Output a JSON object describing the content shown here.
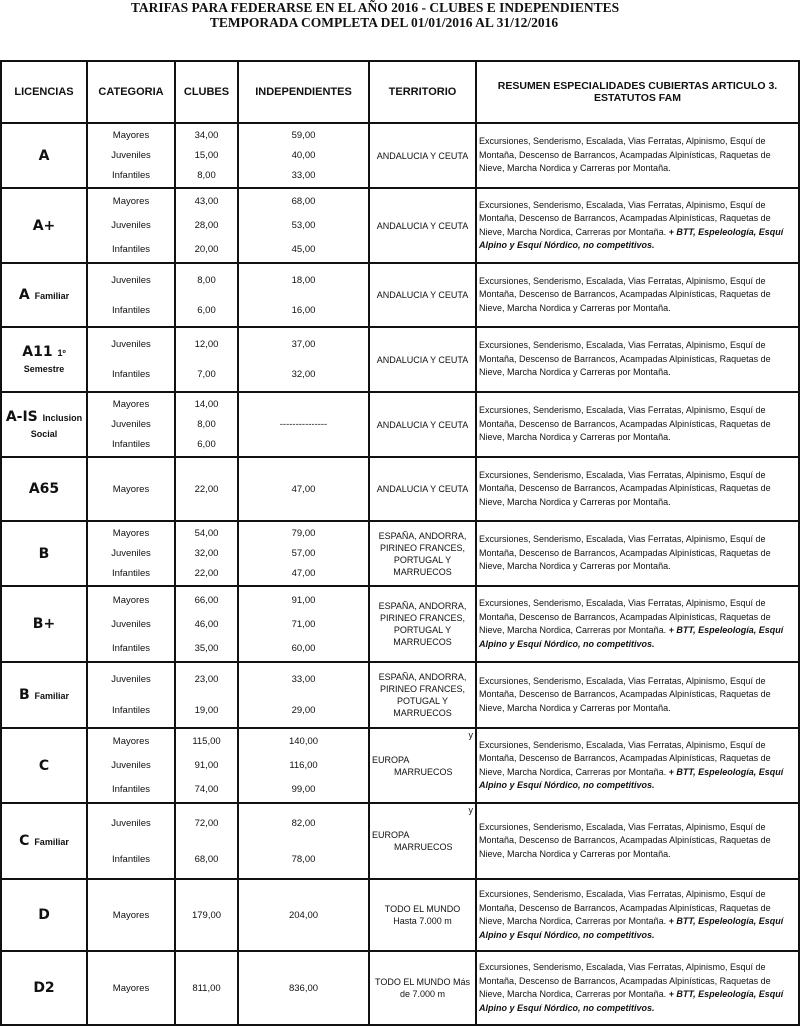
{
  "title_line1": "TARIFAS PARA FEDERARSE EN EL AÑO 2016 - CLUBES E INDEPENDIENTES",
  "title_line2": "TEMPORADA COMPLETA DEL 01/01/2016 AL 31/12/2016",
  "headers": [
    "LICENCIAS",
    "CATEGORIA",
    "CLUBES",
    "INDEPENDIENTES",
    "TERRITORIO",
    "RESUMEN ESPECIALIDADES CUBIERTAS ARTICULO 3. ESTATUTOS FAM"
  ],
  "rows": [
    {
      "lic": "A",
      "sub": "",
      "cats": [
        "Mayores",
        "Juveniles",
        "Infantiles"
      ],
      "clubes": [
        "34,00",
        "15,00",
        "8,00"
      ],
      "indep": [
        "59,00",
        "40,00",
        "33,00"
      ],
      "territorio": "ANDALUCIA Y CEUTA",
      "desc": "Excursiones, Senderismo, Escalada, Vias Ferratas, Alpinismo, Esquí de Montaña, Descenso de Barrancos, Acampadas Alpinísticas, Raquetas de Nieve, Marcha Nordica y Carreras por Montaña.",
      "desc_extra": ""
    },
    {
      "lic": "A+",
      "sub": "",
      "cats": [
        "Mayores",
        "Juveniles",
        "Infantiles"
      ],
      "clubes": [
        "43,00",
        "28,00",
        "20,00"
      ],
      "indep": [
        "68,00",
        "53,00",
        "45,00"
      ],
      "territorio": "ANDALUCIA Y CEUTA",
      "desc": "Excursiones, Senderismo, Escalada, Vias Ferratas, Alpinismo, Esquí de Montaña, Descenso de Barrancos, Acampadas Alpinísticas, Raquetas de Nieve, Marcha Nordica, Carreras por Montaña.",
      "desc_extra": "+ BTT, Espeleología, Esquí Alpino  y Esquí Nórdico, no competitivos."
    },
    {
      "lic": "A",
      "sub": "Familiar",
      "cats": [
        "Juveniles",
        "Infantiles"
      ],
      "clubes": [
        "8,00",
        "6,00"
      ],
      "indep": [
        "18,00",
        "16,00"
      ],
      "territorio": "ANDALUCIA Y CEUTA",
      "desc": "Excursiones, Senderismo, Escalada, Vias Ferratas, Alpinismo, Esquí de Montaña, Descenso de Barrancos, Acampadas Alpinísticas, Raquetas de Nieve, Marcha Nordica y Carreras por Montaña.",
      "desc_extra": ""
    },
    {
      "lic": "A11",
      "sub": "1º Semestre",
      "cats": [
        "Juveniles",
        "Infantiles"
      ],
      "clubes": [
        "12,00",
        "7,00"
      ],
      "indep": [
        "37,00",
        "32,00"
      ],
      "territorio": "ANDALUCIA Y CEUTA",
      "desc": "Excursiones, Senderismo, Escalada, Vias Ferratas, Alpinismo, Esquí de Montaña, Descenso de Barrancos, Acampadas Alpinísticas, Raquetas de Nieve, Marcha Nordica y Carreras por Montaña.",
      "desc_extra": ""
    },
    {
      "lic": "A-IS",
      "sub": "Inclusion Social",
      "cats": [
        "Mayores",
        "Juveniles",
        "Infantiles"
      ],
      "clubes": [
        "14,00",
        "8,00",
        "6,00"
      ],
      "indep": [
        "---------------"
      ],
      "territorio": "ANDALUCIA Y CEUTA",
      "desc": "Excursiones, Senderismo, Escalada, Vias Ferratas, Alpinismo, Esquí de Montaña, Descenso de Barrancos, Acampadas Alpinísticas, Raquetas de Nieve, Marcha Nordica y Carreras por Montaña.",
      "desc_extra": ""
    },
    {
      "lic": "A65",
      "sub": "",
      "cats": [
        "Mayores"
      ],
      "clubes": [
        "22,00"
      ],
      "indep": [
        "47,00"
      ],
      "territorio": "ANDALUCIA Y CEUTA",
      "desc": "Excursiones, Senderismo, Escalada, Vias Ferratas, Alpinismo, Esquí de Montaña, Descenso de Barrancos, Acampadas Alpinísticas, Raquetas de Nieve, Marcha Nordica y Carreras por Montaña.",
      "desc_extra": ""
    },
    {
      "lic": "B",
      "sub": "",
      "cats": [
        "Mayores",
        "Juveniles",
        "Infantiles"
      ],
      "clubes": [
        "54,00",
        "32,00",
        "22,00"
      ],
      "indep": [
        "79,00",
        "57,00",
        "47,00"
      ],
      "territorio": "ESPAÑA, ANDORRA, PIRINEO FRANCES, PORTUGAL Y MARRUECOS",
      "desc": "Excursiones, Senderismo, Escalada, Vias Ferratas, Alpinismo, Esquí de Montaña, Descenso de Barrancos, Acampadas Alpinísticas, Raquetas de Nieve, Marcha Nordica y Carreras por Montaña.",
      "desc_extra": ""
    },
    {
      "lic": "B+",
      "sub": "",
      "cats": [
        "Mayores",
        "Juveniles",
        "Infantiles"
      ],
      "clubes": [
        "66,00",
        "46,00",
        "35,00"
      ],
      "indep": [
        "91,00",
        "71,00",
        "60,00"
      ],
      "territorio": "ESPAÑA, ANDORRA, PIRINEO FRANCES, PORTUGAL Y MARRUECOS",
      "desc": "Excursiones, Senderismo, Escalada, Vias Ferratas, Alpinismo, Esquí de Montaña, Descenso de Barrancos, Acampadas Alpinísticas, Raquetas de Nieve, Marcha Nordica, Carreras por Montaña.",
      "desc_extra": "+ BTT, Espeleología, Esquí Alpino  y Esquí Nórdico, no competitivos."
    },
    {
      "lic": "B",
      "sub": "Familiar",
      "cats": [
        "Juveniles",
        "Infantiles"
      ],
      "clubes": [
        "23,00",
        "19,00"
      ],
      "indep": [
        "33,00",
        "29,00"
      ],
      "territorio": "ESPAÑA, ANDORRA, PIRINEO FRANCES, POTUGAL Y MARRUECOS",
      "desc": "Excursiones, Senderismo, Escalada, Vias Ferratas, Alpinismo, Esquí de Montaña, Descenso de Barrancos, Acampadas Alpinísticas, Raquetas de Nieve, Marcha Nordica y Carreras por Montaña.",
      "desc_extra": ""
    },
    {
      "lic": "C",
      "sub": "",
      "cats": [
        "Mayores",
        "Juveniles",
        "Infantiles"
      ],
      "clubes": [
        "115,00",
        "91,00",
        "74,00"
      ],
      "indep": [
        "140,00",
        "116,00",
        "99,00"
      ],
      "territorio_eu": {
        "a": "EUROPA",
        "y": "y",
        "b": "MARRUECOS"
      },
      "desc": "Excursiones, Senderismo, Escalada, Vias Ferratas, Alpinismo, Esquí de Montaña, Descenso de Barrancos, Acampadas Alpinísticas, Raquetas de Nieve, Marcha Nordica, Carreras por Montaña.",
      "desc_extra": "+ BTT, Espeleología, Esquí Alpino  y Esquí Nórdico, no competitivos."
    },
    {
      "lic": "C",
      "sub": "Familiar",
      "cats": [
        "Juveniles",
        "Infantiles"
      ],
      "clubes": [
        "72,00",
        "68,00"
      ],
      "indep": [
        "82,00",
        "78,00"
      ],
      "territorio_eu": {
        "a": "EUROPA",
        "y": "y",
        "b": "MARRUECOS"
      },
      "desc": "Excursiones, Senderismo, Escalada, Vias Ferratas, Alpinismo, Esquí de Montaña, Descenso de Barrancos, Acampadas Alpinísticas, Raquetas de Nieve, Marcha Nordica y Carreras por Montaña.",
      "desc_extra": ""
    },
    {
      "lic": "D",
      "sub": "",
      "cats": [
        "Mayores"
      ],
      "clubes": [
        "179,00"
      ],
      "indep": [
        "204,00"
      ],
      "territorio": "TODO EL MUNDO Hasta 7.000 m",
      "desc": "Excursiones, Senderismo, Escalada, Vias Ferratas, Alpinismo, Esquí de Montaña, Descenso de Barrancos, Acampadas Alpinísticas, Raquetas de Nieve, Marcha Nordica, Carreras por Montaña.",
      "desc_extra": "+ BTT, Espeleología, Esquí Alpino  y Esquí Nórdico, no competitivos."
    },
    {
      "lic": "D2",
      "sub": "",
      "cats": [
        "Mayores"
      ],
      "clubes": [
        "811,00"
      ],
      "indep": [
        "836,00"
      ],
      "territorio": "TODO EL MUNDO  Más de 7.000 m",
      "desc": "Excursiones, Senderismo, Escalada, Vias Ferratas, Alpinismo, Esquí de Montaña, Descenso de Barrancos, Acampadas Alpinísticas, Raquetas de Nieve, Marcha Nordica, Carreras por Montaña.",
      "desc_extra": "+ BTT, Espeleología, Esquí Alpino  y Esquí Nórdico, no competitivos."
    }
  ]
}
